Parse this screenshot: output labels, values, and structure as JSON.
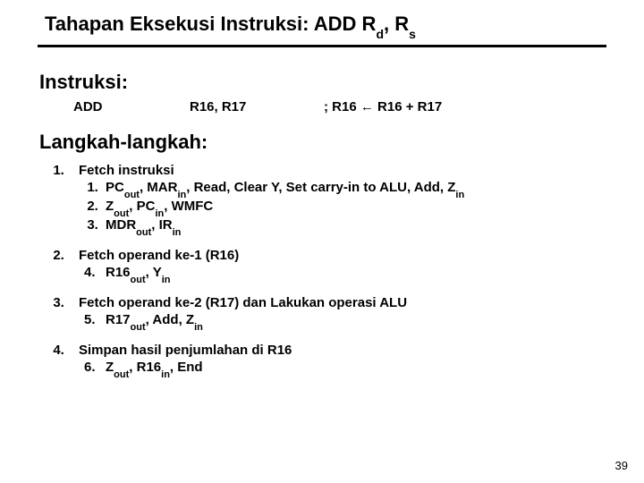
{
  "title": {
    "prefix": "Tahapan Eksekusi Instruksi: ADD R",
    "sub1": "d",
    "mid": ", R",
    "sub2": "s"
  },
  "instruksiLabel": "Instruksi:",
  "instr": {
    "add": "ADD",
    "args": "R16, R17",
    "commentPrefix": "; R16 ",
    "arrow": "←",
    "commentSuffix": " R16 + R17"
  },
  "stepsLabel": "Langkah-langkah:",
  "steps": {
    "s1": {
      "lead": "Fetch instruksi",
      "a": {
        "t1": "PC",
        "s1": "out",
        "t2": ", MAR",
        "s2": "in",
        "t3": ", Read, Clear Y, Set carry-in to ALU, Add, Z",
        "s3": "in"
      },
      "b": {
        "t1": "Z",
        "s1": "out",
        "t2": ", PC",
        "s2": "in",
        "t3": ", WMFC"
      },
      "c": {
        "t1": "MDR",
        "s1": "out",
        "t2": ", IR",
        "s2": "in"
      }
    },
    "s2": {
      "lead": "Fetch operand ke-1 (R16)",
      "a": {
        "t1": "R16",
        "s1": "out",
        "t2": ", Y",
        "s2": "in"
      }
    },
    "s3": {
      "lead": "Fetch operand ke-2 (R17) dan Lakukan operasi ALU",
      "a": {
        "t1": "R17",
        "s1": "out",
        "t2": ", Add, Z",
        "s2": "in"
      }
    },
    "s4": {
      "lead": "Simpan hasil penjumlahan di R16",
      "a": {
        "t1": "Z",
        "s1": "out",
        "t2": ", R16",
        "s2": "in",
        "t3": ", End"
      }
    }
  },
  "pageNumber": "39"
}
